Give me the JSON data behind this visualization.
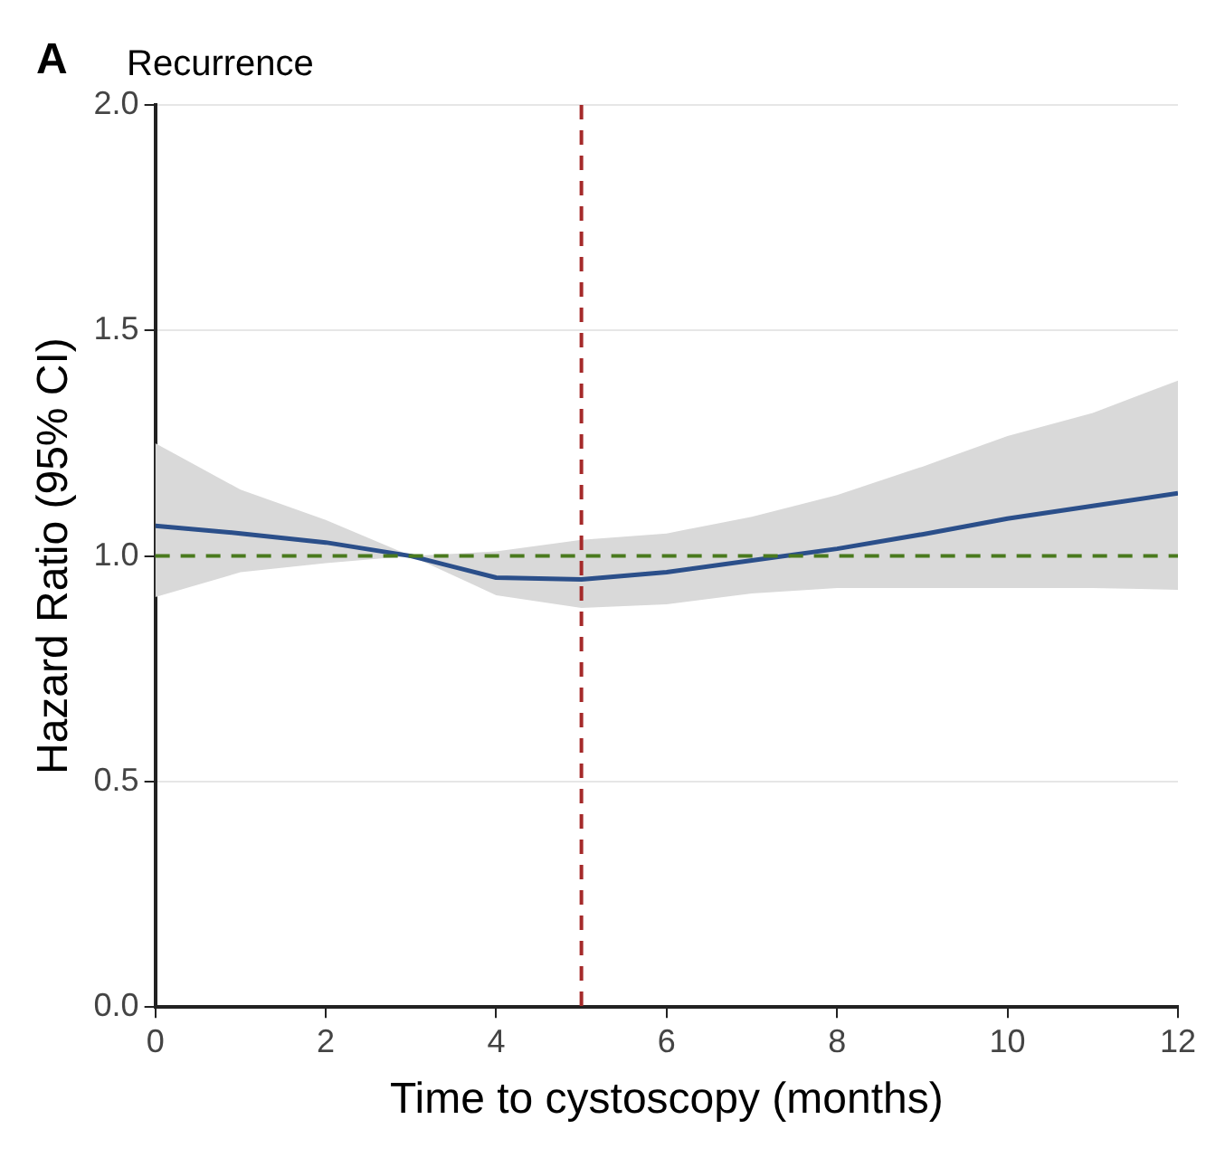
{
  "chart_data": {
    "type": "line",
    "title": "Recurrence",
    "xlabel": "Time to cystoscopy (months)",
    "ylabel": "Hazard Ratio (95% CI)",
    "annotations": [
      "A"
    ],
    "x": [
      0,
      1,
      2,
      3,
      4,
      5,
      6,
      7,
      8,
      9,
      10,
      11,
      12
    ],
    "series": [
      {
        "color": "#2b4f8a",
        "values": [
          1.067,
          1.05,
          1.03,
          1.0,
          0.952,
          0.948,
          0.964,
          0.99,
          1.016,
          1.048,
          1.083,
          1.111,
          1.139
        ],
        "lower": [
          0.909,
          0.964,
          0.984,
          1.0,
          0.913,
          0.885,
          0.893,
          0.917,
          0.929,
          0.929,
          0.929,
          0.929,
          0.925
        ],
        "upper": [
          1.25,
          1.147,
          1.08,
          1.0,
          1.01,
          1.036,
          1.05,
          1.087,
          1.135,
          1.198,
          1.266,
          1.317,
          1.389
        ]
      }
    ],
    "xlim": [
      0,
      12
    ],
    "xticks": [
      0,
      2,
      4,
      6,
      8,
      10,
      12
    ],
    "ylim": [
      0,
      2
    ],
    "yticks": [
      {
        "value": 0,
        "label": "0.0"
      },
      {
        "value": 0.5,
        "label": "0.5"
      },
      {
        "value": 1,
        "label": "1.0"
      },
      {
        "value": 1.5,
        "label": "1.5"
      },
      {
        "value": 2,
        "label": "2.0"
      }
    ],
    "ref_lines": [
      {
        "axis": "y",
        "value": 1,
        "color": "#4a7a1e",
        "line_style": "dashed"
      },
      {
        "axis": "x",
        "value": 5,
        "color": "#a52a2a",
        "line_style": "dashed"
      }
    ],
    "grid": "y",
    "legend": false,
    "marker": "none",
    "line_style": "solid"
  }
}
